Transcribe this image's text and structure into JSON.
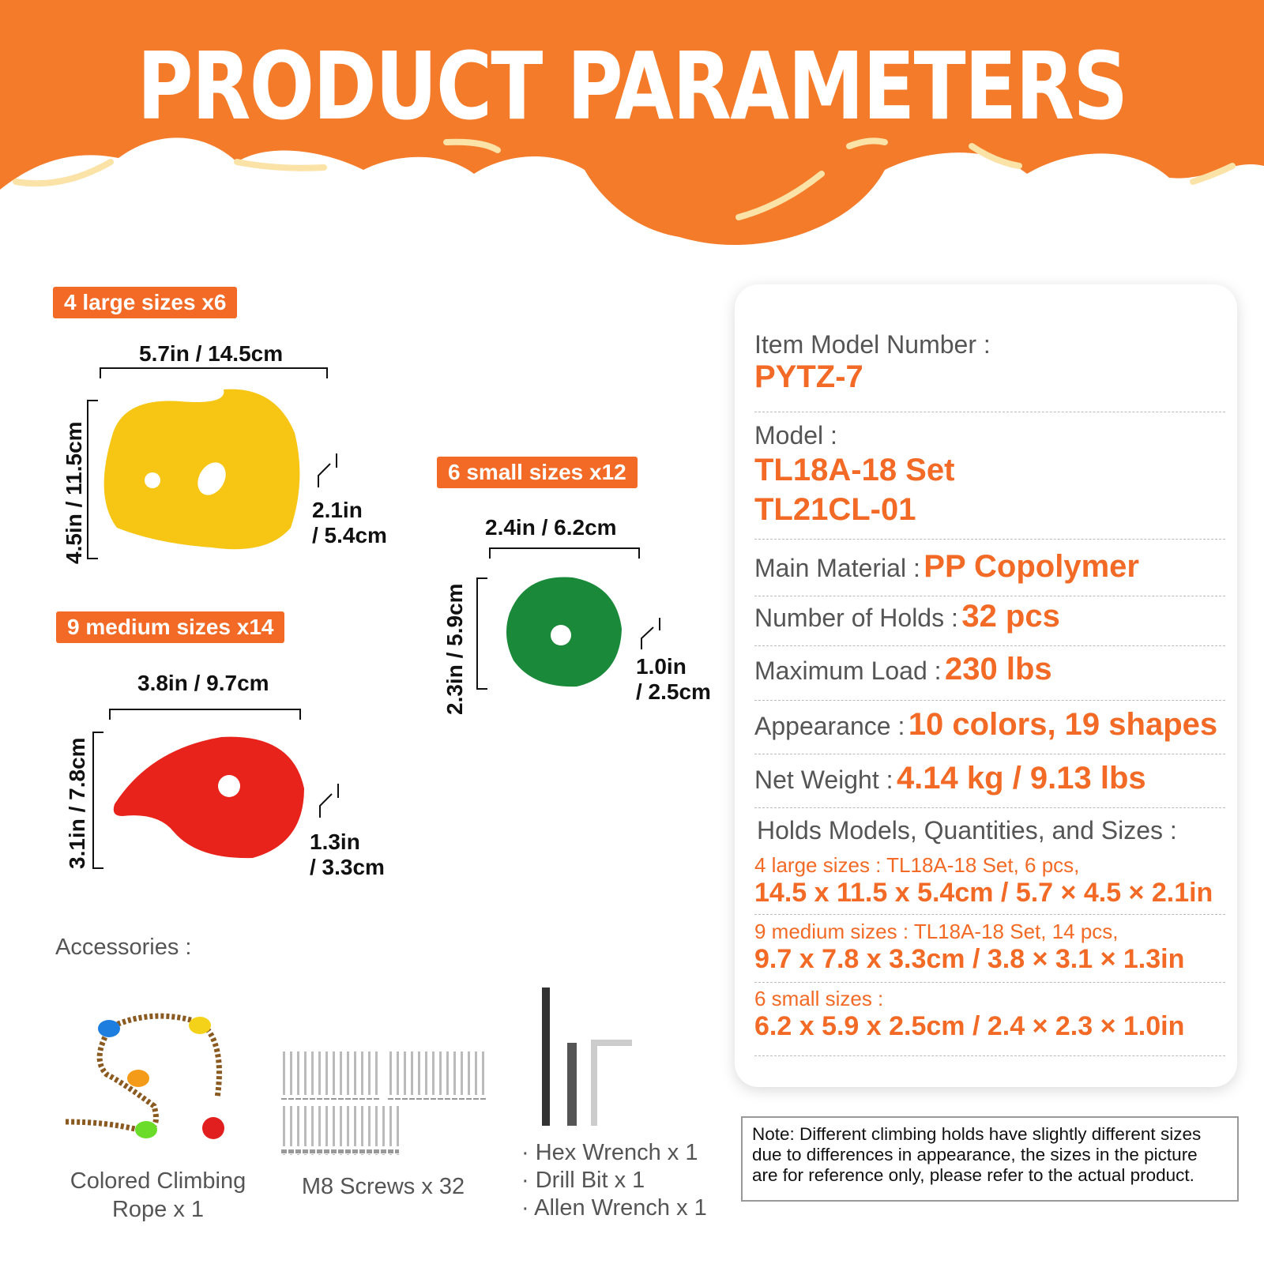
{
  "header": {
    "title": "PRODUCT PARAMETERS",
    "color": "#f47b2a"
  },
  "large": {
    "tag": "4 large sizes x6",
    "width": "5.7in / 14.5cm",
    "height": "4.5in / 11.5cm",
    "depth1": "2.1in",
    "depth2": "/ 5.4cm",
    "color": "#f7c614"
  },
  "medium": {
    "tag": "9 medium sizes x14",
    "width": "3.8in / 9.7cm",
    "height": "3.1in / 7.8cm",
    "depth1": "1.3in",
    "depth2": "/ 3.3cm",
    "color": "#e8231b"
  },
  "small": {
    "tag": "6 small sizes x12",
    "width": "2.4in / 6.2cm",
    "height": "2.3in / 5.9cm",
    "depth1": "1.0in",
    "depth2": "/ 2.5cm",
    "color": "#1a8a3a"
  },
  "accessories": {
    "title": "Accessories :",
    "rope1": "Colored Climbing",
    "rope2": "Rope x 1",
    "screws": "M8 Screws x 32",
    "tools": [
      "· Hex Wrench x 1",
      "· Drill Bit x 1",
      "· Allen Wrench x 1"
    ]
  },
  "specs": {
    "model_number_label": "Item Model Number :",
    "model_number": "PYTZ-7",
    "model_label": "Model :",
    "model1": "TL18A-18 Set",
    "model2": "TL21CL-01",
    "material_label": "Main Material :",
    "material": "PP Copolymer",
    "holds_label": "Number of Holds :",
    "holds": "32 pcs",
    "load_label": "Maximum Load :",
    "load": "230 lbs",
    "appearance_label": "Appearance :",
    "appearance": "10 colors, 19 shapes",
    "weight_label": "Net Weight :",
    "weight": "4.14 kg / 9.13 lbs",
    "sizes_label": "Holds Models, Quantities, and Sizes :",
    "large_sub": "4 large sizes : TL18A-18 Set, 6 pcs,",
    "large_size": "14.5 x 11.5 x 5.4cm / 5.7 × 4.5 × 2.1in",
    "medium_sub": "9 medium sizes : TL18A-18 Set, 14 pcs,",
    "medium_size": "9.7 x 7.8 x 3.3cm / 3.8 × 3.1 × 1.3in",
    "small_sub": "6 small sizes :",
    "small_size": "6.2 x 5.9 x 2.5cm / 2.4 × 2.3 × 1.0in"
  },
  "note": "Note: Different climbing holds have slightly different sizes due to differences in appearance, the sizes in the picture are for reference only, please refer to the actual product."
}
